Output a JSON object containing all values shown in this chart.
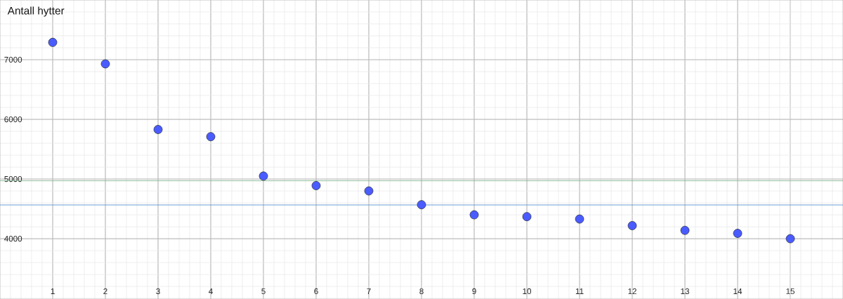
{
  "chart_data": {
    "type": "scatter",
    "ylabel": "Antall hytter",
    "x": [
      1,
      2,
      3,
      4,
      5,
      6,
      7,
      8,
      9,
      10,
      11,
      12,
      13,
      14,
      15
    ],
    "values": [
      7290,
      6930,
      5830,
      5710,
      5050,
      4890,
      4800,
      4570,
      4400,
      4370,
      4330,
      4220,
      4140,
      4090,
      4000
    ],
    "color": "#4a5cff",
    "marker": "circle",
    "xlim": [
      0,
      16
    ],
    "ylim": [
      2990,
      8000
    ],
    "xticks": [
      1,
      2,
      3,
      4,
      5,
      6,
      7,
      8,
      9,
      10,
      11,
      12,
      13,
      14,
      15
    ],
    "yticks": [
      4000,
      5000,
      6000,
      7000
    ],
    "grid": true,
    "ref_lines": [
      {
        "axis": "y",
        "value": 4970,
        "color": "#78b088"
      },
      {
        "axis": "y",
        "value": 4565,
        "color": "#6d9fd6"
      }
    ]
  }
}
